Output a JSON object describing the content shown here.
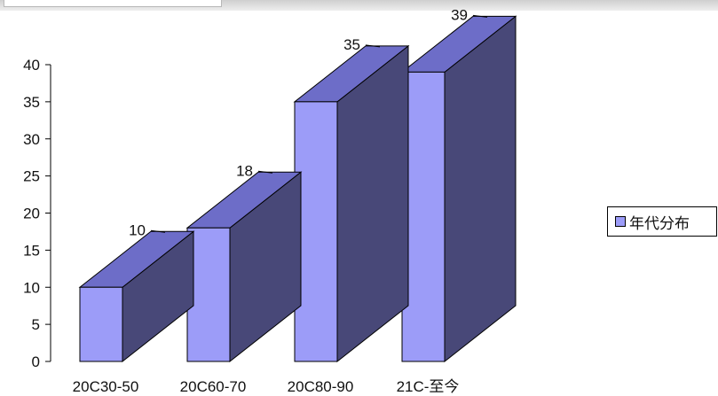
{
  "colors": {
    "front": "#9c9cf8",
    "top": "#6d6dc8",
    "side": "#484878",
    "edge": "#000000"
  },
  "chart_data": {
    "type": "bar",
    "categories": [
      "20C30-50",
      "20C60-70",
      "20C80-90",
      "21C-至今"
    ],
    "series": [
      {
        "name": "年代分布",
        "values": [
          10,
          18,
          35,
          39
        ]
      }
    ],
    "data_labels": [
      "10",
      "18",
      "35",
      "39"
    ],
    "yticks": [
      0,
      5,
      10,
      15,
      20,
      25,
      30,
      35,
      40
    ],
    "ylim": [
      0,
      40
    ],
    "title": "",
    "xlabel": "",
    "ylabel": "",
    "grid": false,
    "legend_position": "right",
    "style": "3d-column"
  }
}
